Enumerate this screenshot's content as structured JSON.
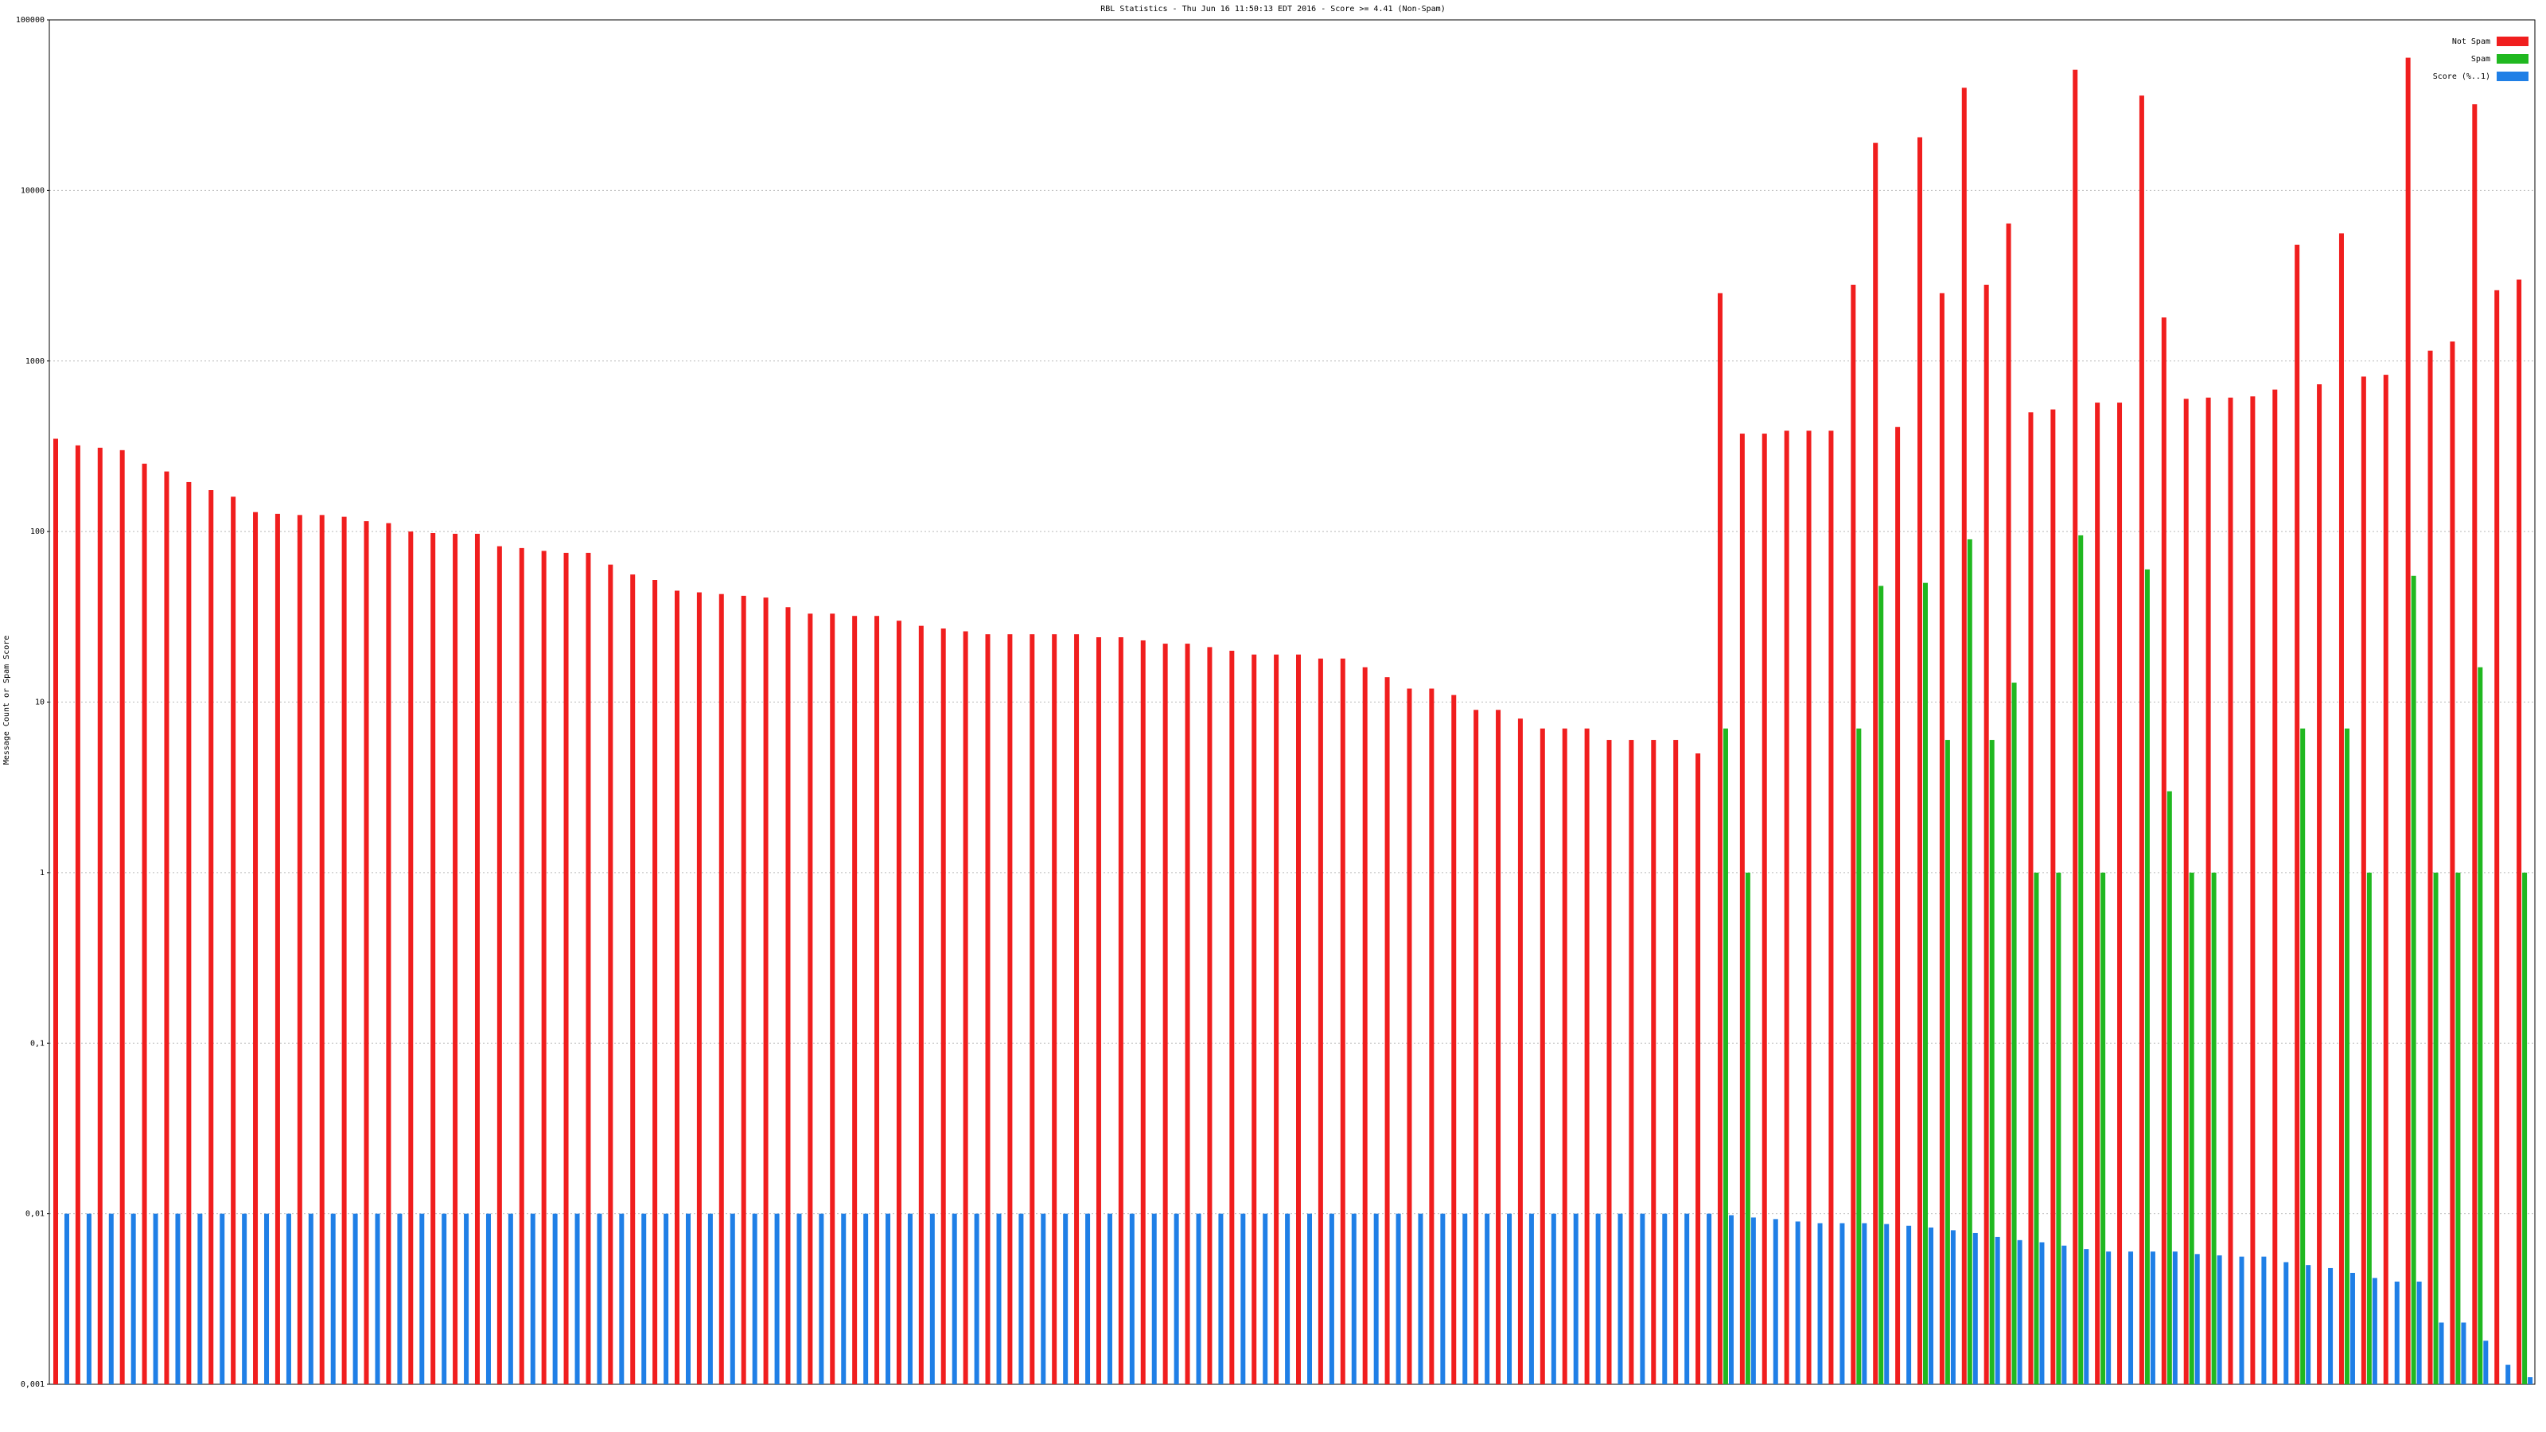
{
  "chart_data": {
    "type": "bar",
    "title": "RBL Statistics - Thu Jun 16 11:50:13 EDT 2016 - Score >= 4.41 (Non-Spam)",
    "y_label": "Message Count or Spam Score",
    "log_scale": true,
    "grid": true,
    "legend_position": "upper-right",
    "ylim": [
      0.001,
      100000
    ],
    "yticks": [
      {
        "value": 0.001,
        "label": "0,001"
      },
      {
        "value": 0.01,
        "label": "0,01"
      },
      {
        "value": 0.1,
        "label": "0,1"
      },
      1,
      10,
      100,
      1000,
      10000,
      100000
    ],
    "categories": [
      null,
      null,
      null,
      null,
      null,
      null,
      null,
      null,
      null,
      null,
      null,
      null,
      null,
      null,
      null,
      null,
      null,
      null,
      null,
      null,
      null,
      null,
      null,
      null,
      null,
      null,
      null,
      null,
      null,
      null,
      null,
      null,
      null,
      null,
      null,
      null,
      null,
      null,
      null,
      null,
      null,
      null,
      null,
      null,
      null,
      null,
      null,
      null,
      null,
      null,
      null,
      null,
      null,
      null,
      null,
      null,
      null,
      null,
      null,
      null,
      null,
      null,
      null,
      null,
      null,
      null,
      null,
      null,
      null,
      null,
      null,
      null,
      null,
      null,
      null,
      null,
      null,
      null,
      null,
      null,
      null,
      null,
      null,
      null,
      null,
      null,
      null,
      null,
      null,
      null,
      null,
      null,
      null,
      null,
      null,
      null,
      null,
      null,
      null,
      null,
      null,
      null,
      null,
      null,
      null,
      null,
      null,
      null,
      null,
      null,
      null,
      null
    ],
    "series": [
      {
        "name": "Not Spam",
        "color": "#f01e1e",
        "values": [
          350,
          320,
          310,
          300,
          250,
          225,
          195,
          175,
          160,
          130,
          127,
          125,
          125,
          122,
          115,
          112,
          100,
          98,
          97,
          97,
          82,
          80,
          77,
          75,
          75,
          64,
          56,
          52,
          45,
          44,
          43,
          42,
          41,
          36,
          33,
          33,
          32,
          32,
          30,
          28,
          27,
          26,
          25,
          25,
          25,
          25,
          25,
          24,
          24,
          23,
          22,
          22,
          21,
          20,
          19,
          19,
          19,
          18,
          18,
          16,
          14,
          12,
          12,
          11,
          9,
          9,
          8,
          7,
          7,
          7,
          6,
          6,
          6,
          6,
          5,
          2500,
          375,
          375,
          390,
          390,
          390,
          2800,
          19000,
          410,
          20500,
          2500,
          40000,
          2800,
          6400,
          500,
          520,
          51000,
          570,
          570,
          36000,
          1800,
          600,
          610,
          610,
          620,
          680,
          4800,
          730,
          5600,
          810,
          830,
          60000,
          1150,
          1300,
          32000,
          2600,
          3000
        ]
      },
      {
        "name": "Spam",
        "color": "#20b820",
        "values": [
          null,
          null,
          null,
          null,
          null,
          null,
          null,
          null,
          null,
          null,
          null,
          null,
          null,
          null,
          null,
          null,
          null,
          null,
          null,
          null,
          null,
          null,
          null,
          null,
          null,
          null,
          null,
          null,
          null,
          null,
          null,
          null,
          null,
          null,
          null,
          null,
          null,
          null,
          null,
          null,
          null,
          null,
          null,
          null,
          null,
          null,
          null,
          null,
          null,
          null,
          null,
          null,
          null,
          null,
          null,
          null,
          null,
          null,
          null,
          null,
          null,
          null,
          null,
          null,
          null,
          null,
          null,
          null,
          null,
          null,
          null,
          null,
          null,
          null,
          null,
          7,
          1,
          null,
          null,
          null,
          null,
          7,
          48,
          null,
          50,
          6,
          90,
          6,
          13,
          1,
          1,
          95,
          1,
          null,
          60,
          3,
          1,
          1,
          null,
          null,
          null,
          7,
          null,
          7,
          1,
          null,
          55,
          1,
          1,
          16,
          null,
          1
        ]
      },
      {
        "name": "Score (%..1)",
        "color": "#1f7fe6",
        "values": [
          0.01,
          0.01,
          0.01,
          0.01,
          0.01,
          0.01,
          0.01,
          0.01,
          0.01,
          0.01,
          0.01,
          0.01,
          0.01,
          0.01,
          0.01,
          0.01,
          0.01,
          0.01,
          0.01,
          0.01,
          0.01,
          0.01,
          0.01,
          0.01,
          0.01,
          0.01,
          0.01,
          0.01,
          0.01,
          0.01,
          0.01,
          0.01,
          0.01,
          0.01,
          0.01,
          0.01,
          0.01,
          0.01,
          0.01,
          0.01,
          0.01,
          0.01,
          0.01,
          0.01,
          0.01,
          0.01,
          0.01,
          0.01,
          0.01,
          0.01,
          0.01,
          0.01,
          0.01,
          0.01,
          0.01,
          0.01,
          0.01,
          0.01,
          0.01,
          0.01,
          0.01,
          0.01,
          0.01,
          0.01,
          0.01,
          0.01,
          0.01,
          0.01,
          0.01,
          0.01,
          0.01,
          0.01,
          0.01,
          0.01,
          0.01,
          0.0098,
          0.0095,
          0.0093,
          0.009,
          0.0088,
          0.0088,
          0.0088,
          0.0087,
          0.0085,
          0.0083,
          0.008,
          0.0077,
          0.0073,
          0.007,
          0.0068,
          0.0065,
          0.0062,
          0.006,
          0.006,
          0.006,
          0.006,
          0.0058,
          0.0057,
          0.0056,
          0.0056,
          0.0052,
          0.005,
          0.0048,
          0.0045,
          0.0042,
          0.004,
          0.004,
          0.0023,
          0.0023,
          0.0018,
          0.0013,
          0.0011
        ]
      }
    ]
  }
}
